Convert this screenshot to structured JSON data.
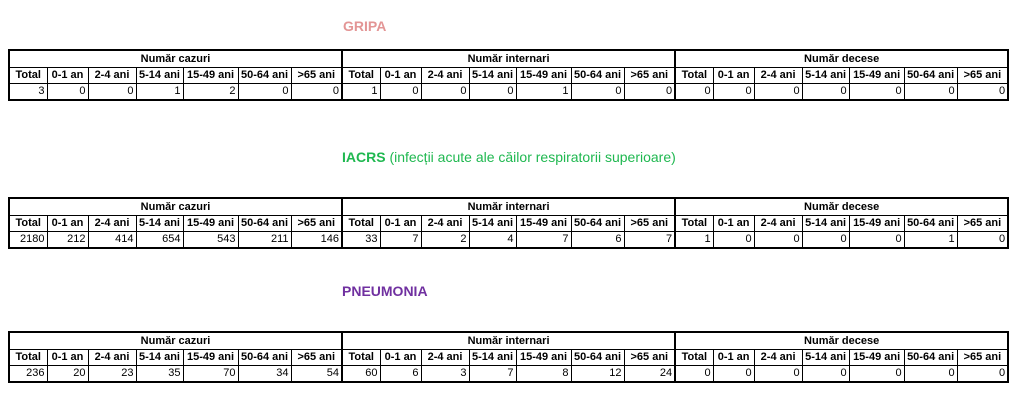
{
  "group_headers": [
    "Număr cazuri",
    "Număr internari",
    "Număr decese"
  ],
  "age_headers": [
    "Total",
    "0-1 an",
    "2-4 ani",
    "5-14 ani",
    "15-49 ani",
    "50-64 ani",
    ">65 ani"
  ],
  "sections": [
    {
      "title_bold": "GRIPA",
      "title_rest": "",
      "color": "#e39595",
      "values": [
        3,
        0,
        0,
        1,
        2,
        0,
        0,
        1,
        0,
        0,
        0,
        1,
        0,
        0,
        0,
        0,
        0,
        0,
        0,
        0,
        0
      ]
    },
    {
      "title_bold": "IACRS",
      "title_rest": " (infecții acute ale căilor respiratorii superioare)",
      "color": "#1fb850",
      "values": [
        2180,
        212,
        414,
        654,
        543,
        211,
        146,
        33,
        7,
        2,
        4,
        7,
        6,
        7,
        1,
        0,
        0,
        0,
        0,
        1,
        0
      ]
    },
    {
      "title_bold": "PNEUMONIA",
      "title_rest": "",
      "color": "#7030a0",
      "values": [
        236,
        20,
        23,
        35,
        70,
        34,
        54,
        60,
        6,
        3,
        7,
        8,
        12,
        24,
        0,
        0,
        0,
        0,
        0,
        0,
        0
      ]
    }
  ]
}
